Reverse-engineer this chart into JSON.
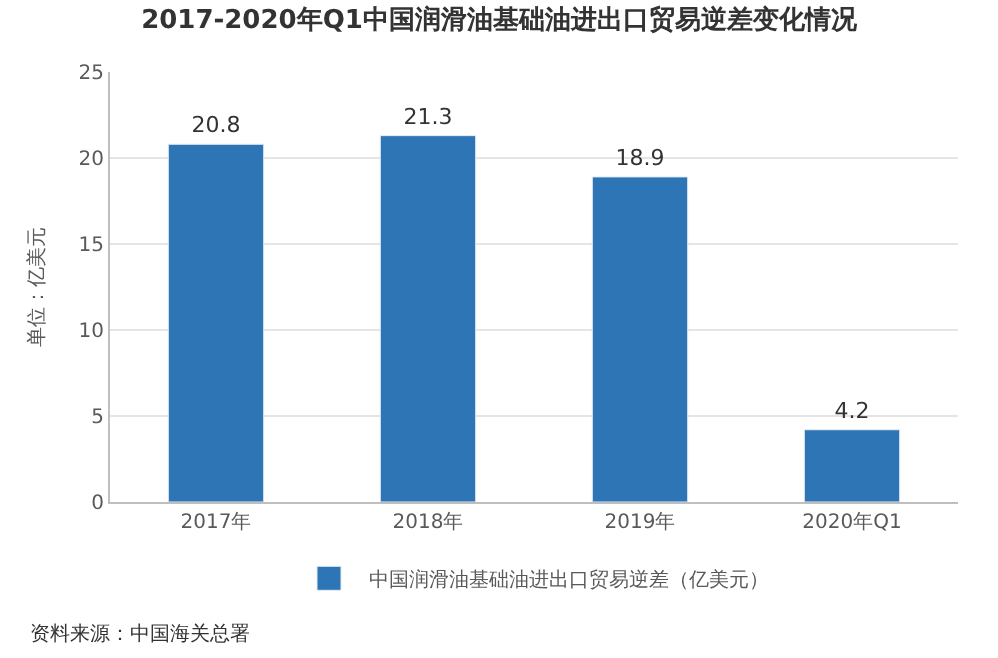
{
  "chart_data": {
    "type": "bar",
    "title": "2017-2020年Q1中国润滑油基础油进出口贸易逆差变化情况",
    "ylabel": "单位：亿美元",
    "categories": [
      "2017年",
      "2018年",
      "2019年",
      "2020年Q1"
    ],
    "series": [
      {
        "name": "中国润滑油基础油进出口贸易逆差（亿美元）",
        "color": "#2e75b6",
        "values": [
          20.8,
          21.3,
          18.9,
          4.2
        ]
      }
    ],
    "ylim": [
      0,
      25
    ],
    "yticks": [
      0,
      5,
      10,
      15,
      20,
      25
    ],
    "grid": "y",
    "legend": "bottom",
    "data_labels": true,
    "annotations": [
      "资料来源：中国海关总署"
    ]
  }
}
